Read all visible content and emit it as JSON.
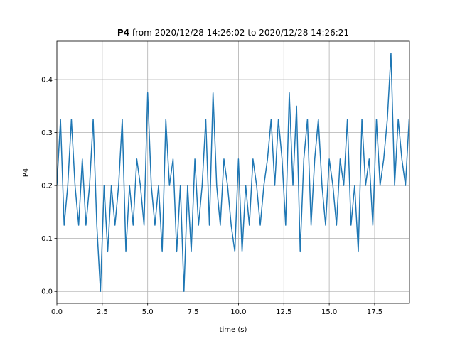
{
  "chart_data": {
    "type": "line",
    "title_name": "P4",
    "title_range": "from 2020/12/28 14:26:02 to 2020/12/28 14:26:21",
    "xlabel": "time (s)",
    "ylabel": "P4",
    "color": "#1f77b4",
    "grid": true,
    "xlim": [
      0,
      19.42
    ],
    "ylim": [
      -0.0225,
      0.4725
    ],
    "xticks": [
      {
        "value": 0,
        "label": "0.0"
      },
      2.5,
      {
        "value": 5,
        "label": "5.0"
      },
      7.5,
      {
        "value": 10,
        "label": "10.0"
      },
      12.5,
      {
        "value": 15,
        "label": "15.0"
      },
      17.5
    ],
    "yticks": [
      {
        "value": 0,
        "label": "0.0"
      },
      0.1,
      0.2,
      0.3,
      0.4
    ],
    "x": [
      0,
      0.2,
      0.4,
      0.6,
      0.8,
      1,
      1.2,
      1.4,
      1.6,
      1.8,
      2,
      2.2,
      2.4,
      2.6,
      2.8,
      3,
      3.2,
      3.4,
      3.6,
      3.8,
      4,
      4.2,
      4.4,
      4.6,
      4.8,
      5,
      5.2,
      5.4,
      5.6,
      5.8,
      6,
      6.2,
      6.4,
      6.6,
      6.8,
      7,
      7.2,
      7.4,
      7.6,
      7.8,
      8,
      8.2,
      8.4,
      8.6,
      8.8,
      9,
      9.2,
      9.4,
      9.6,
      9.8,
      10,
      10.2,
      10.4,
      10.6,
      10.8,
      11,
      11.2,
      11.4,
      11.6,
      11.8,
      12,
      12.2,
      12.4,
      12.6,
      12.8,
      13,
      13.2,
      13.4,
      13.6,
      13.8,
      14,
      14.2,
      14.4,
      14.6,
      14.8,
      15,
      15.2,
      15.4,
      15.6,
      15.8,
      16,
      16.2,
      16.4,
      16.6,
      16.8,
      17,
      17.2,
      17.4,
      17.6,
      17.8,
      18,
      18.2,
      18.4,
      18.6,
      18.8,
      19,
      19.2,
      19.4
    ],
    "values": [
      0.2,
      0.325,
      0.125,
      0.2,
      0.325,
      0.2,
      0.125,
      0.25,
      0.125,
      0.2,
      0.325,
      0.125,
      0.0,
      0.2,
      0.075,
      0.2,
      0.125,
      0.2,
      0.325,
      0.075,
      0.2,
      0.125,
      0.25,
      0.2,
      0.125,
      0.375,
      0.2,
      0.125,
      0.2,
      0.075,
      0.325,
      0.2,
      0.25,
      0.075,
      0.2,
      0.0,
      0.2,
      0.075,
      0.25,
      0.125,
      0.2,
      0.325,
      0.125,
      0.375,
      0.2,
      0.125,
      0.25,
      0.2,
      0.125,
      0.075,
      0.25,
      0.075,
      0.2,
      0.125,
      0.25,
      0.2,
      0.125,
      0.2,
      0.25,
      0.325,
      0.2,
      0.325,
      0.25,
      0.125,
      0.375,
      0.2,
      0.35,
      0.075,
      0.25,
      0.325,
      0.125,
      0.25,
      0.325,
      0.2,
      0.125,
      0.25,
      0.2,
      0.125,
      0.25,
      0.2,
      0.325,
      0.125,
      0.2,
      0.075,
      0.325,
      0.2,
      0.25,
      0.125,
      0.325,
      0.2,
      0.25,
      0.325,
      0.45,
      0.2,
      0.325,
      0.25,
      0.2,
      0.325
    ]
  }
}
